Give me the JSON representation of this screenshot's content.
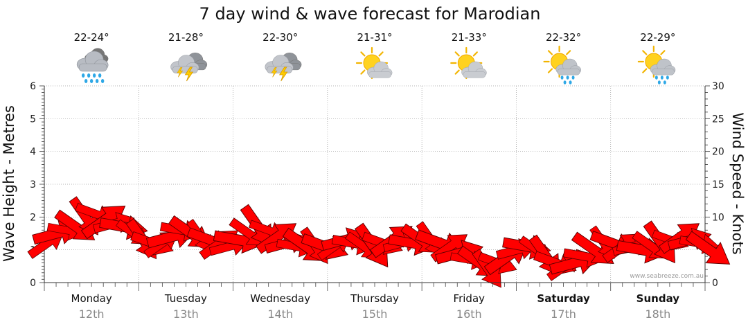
{
  "chart_data": {
    "type": "scatter",
    "title": "7 day wind & wave forecast for Marodian",
    "ylabel_left": "Wave Height - Metres",
    "ylabel_right": "Wind Speed - Knots",
    "ylim_left": [
      0,
      6
    ],
    "ylim_right": [
      0,
      30
    ],
    "yticks_left": [
      "0",
      "1",
      "2",
      "3",
      "4",
      "5",
      "6"
    ],
    "yticks_right": [
      "0",
      "5",
      "10",
      "15",
      "20",
      "25",
      "30"
    ],
    "grid": true,
    "credit": "www.seabreeze.com.au",
    "days": [
      {
        "name": "Monday",
        "date": "12th",
        "temp": "22-24°",
        "icon": "rain-cloud-icon",
        "bold": false
      },
      {
        "name": "Tuesday",
        "date": "13th",
        "temp": "21-28°",
        "icon": "thunderstorm-icon",
        "bold": false
      },
      {
        "name": "Wednesday",
        "date": "14th",
        "temp": "22-30°",
        "icon": "thunderstorm-icon",
        "bold": false
      },
      {
        "name": "Thursday",
        "date": "15th",
        "temp": "21-31°",
        "icon": "sun-cloud-icon",
        "bold": false
      },
      {
        "name": "Friday",
        "date": "16th",
        "temp": "21-33°",
        "icon": "sun-cloud-icon",
        "bold": false
      },
      {
        "name": "Saturday",
        "date": "17th",
        "temp": "22-32°",
        "icon": "sun-shower-icon",
        "bold": true
      },
      {
        "name": "Sunday",
        "date": "18th",
        "temp": "22-29°",
        "icon": "sun-shower-icon",
        "bold": true
      }
    ],
    "arrow_color": "#ff0000",
    "series": [
      {
        "type": "wind-arrows",
        "values": [
          1.2,
          1.5,
          1.6,
          1.7,
          2.0,
          2.1,
          1.9,
          1.8,
          1.7,
          1.5,
          1.3,
          1.2,
          1.2,
          1.4,
          1.6,
          1.5,
          1.4,
          1.3,
          1.2,
          1.1,
          1.3,
          1.5,
          1.7,
          1.6,
          1.4,
          1.2,
          1.1,
          1.1,
          1.1,
          1.1,
          1.1,
          1.3,
          1.2,
          1.1,
          1.1,
          1.2,
          1.3,
          1.2,
          1.2,
          1.3,
          1.3,
          1.2,
          1.1,
          0.9,
          0.7,
          0.6,
          0.4,
          0.6,
          0.8,
          1.0,
          1.1,
          1.0,
          0.8,
          0.6,
          0.5,
          0.6,
          0.8,
          1.0,
          1.2,
          1.2,
          1.1,
          1.1,
          1.0,
          1.1,
          1.2,
          1.3,
          1.4,
          1.3,
          1.2,
          1.0
        ]
      }
    ]
  }
}
